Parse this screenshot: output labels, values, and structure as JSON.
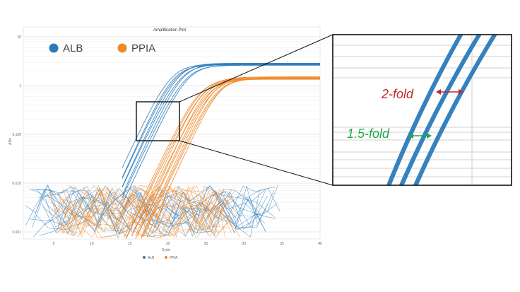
{
  "chart_data": {
    "type": "line",
    "title": "Amplification Plot",
    "xlabel": "Cycle",
    "ylabel": "ΔRn",
    "x_range": [
      1,
      40
    ],
    "x_ticks": [
      "5",
      "10",
      "15",
      "20",
      "25",
      "30",
      "35",
      "40"
    ],
    "y_scale": "log",
    "y_ticks": [
      "10",
      "1",
      "0.100",
      "0.010",
      "0.001"
    ],
    "grid": true,
    "series": [
      {
        "name": "ALB",
        "color": "#2b7bba",
        "plateau": 2.8,
        "midpoint_cycle": 21.5,
        "replicates": 8
      },
      {
        "name": "PPIA",
        "color": "#f0892b",
        "plateau": 1.45,
        "midpoint_cycle": 25.5,
        "replicates": 12
      }
    ],
    "legend_top": [
      "ALB",
      "PPIA"
    ],
    "legend_bottom": [
      "ALB",
      "PPIA"
    ],
    "inset": {
      "annotations": [
        {
          "text": "2-fold",
          "color": "#c0282d",
          "arrow_color": "#c0282d"
        },
        {
          "text": "1.5-fold",
          "color": "#1fa64a",
          "arrow_color": "#1fa64a"
        }
      ]
    }
  }
}
